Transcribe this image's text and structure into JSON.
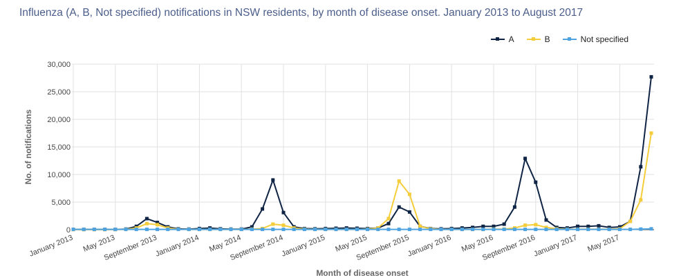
{
  "chart_data": {
    "type": "line",
    "title": "Influenza (A, B, Not specified) notifications in NSW residents, by month of disease onset. January 2013 to August 2017",
    "xlabel": "Month of disease onset",
    "ylabel": "No. of notifications",
    "ylim": [
      0,
      30000
    ],
    "yticks": [
      "0",
      "5,000",
      "10,000",
      "15,000",
      "20,000",
      "25,000",
      "30,000"
    ],
    "xtick_labels": [
      "January 2013",
      "May 2013",
      "September 2013",
      "January 2014",
      "May 2014",
      "September 2014",
      "January 2015",
      "May 2015",
      "September 2015",
      "January 2016",
      "May 2016",
      "September 2016",
      "January 2017",
      "May 2017"
    ],
    "x_start": "January 2013",
    "x_end": "August 2017",
    "grid": true,
    "legend_position": "top-right",
    "series": [
      {
        "name": "A",
        "color": "#0f2444",
        "values": [
          50,
          50,
          50,
          50,
          50,
          100,
          600,
          2000,
          1300,
          500,
          150,
          100,
          200,
          300,
          150,
          100,
          100,
          500,
          3750,
          9000,
          3100,
          500,
          200,
          150,
          200,
          250,
          300,
          250,
          200,
          300,
          1100,
          4100,
          3200,
          600,
          200,
          150,
          200,
          300,
          400,
          600,
          600,
          1000,
          4100,
          12900,
          8600,
          1750,
          400,
          300,
          600,
          600,
          700,
          400,
          500,
          1500,
          11400,
          27700
        ]
      },
      {
        "name": "B",
        "color": "#f5cd3a",
        "values": [
          20,
          20,
          20,
          20,
          30,
          50,
          300,
          1100,
          900,
          300,
          80,
          50,
          50,
          50,
          50,
          50,
          50,
          100,
          200,
          1000,
          800,
          300,
          100,
          50,
          50,
          50,
          50,
          50,
          100,
          300,
          2000,
          8800,
          6400,
          600,
          150,
          50,
          50,
          50,
          50,
          50,
          100,
          100,
          300,
          800,
          900,
          400,
          150,
          80,
          80,
          80,
          80,
          80,
          150,
          1500,
          5400,
          17500
        ]
      },
      {
        "name": "Not specified",
        "color": "#4ea3e0",
        "values": [
          50,
          50,
          50,
          50,
          50,
          50,
          50,
          50,
          50,
          50,
          50,
          50,
          50,
          50,
          50,
          50,
          50,
          50,
          50,
          50,
          50,
          50,
          50,
          50,
          50,
          50,
          50,
          50,
          50,
          50,
          50,
          50,
          50,
          50,
          50,
          50,
          50,
          50,
          50,
          50,
          50,
          50,
          50,
          50,
          50,
          50,
          50,
          50,
          50,
          50,
          50,
          50,
          50,
          50,
          100,
          150
        ]
      }
    ]
  }
}
